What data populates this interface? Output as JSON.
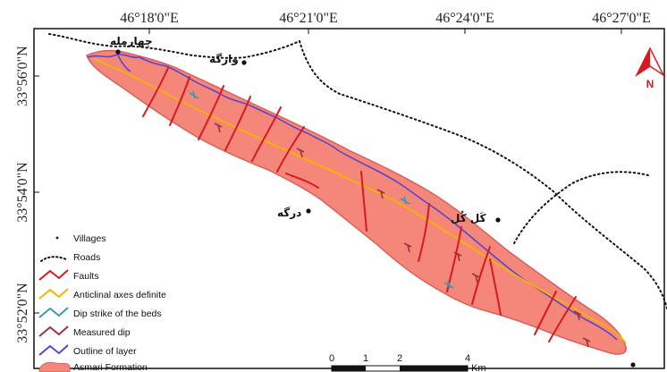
{
  "colors": {
    "formation_fill": "#f4877a",
    "formation_stroke": "#d9605a",
    "fault": "#d71920",
    "anticline": "#f4b400",
    "dip_strike": "#3a9bb0",
    "measured_dip": "#a0303a",
    "layer_outline": "#5a45c8",
    "north_arrow": "#d71920"
  },
  "top_coordinates": [
    "46°18'0\"E",
    "46°21'0\"E",
    "46°24'0\"E",
    "46°27'0\"E"
  ],
  "left_coordinates": [
    "33°56'0\"N",
    "33°54'0\"N",
    "33°52'0\"N"
  ],
  "villages": [
    {
      "name": "چهارمله"
    },
    {
      "name": "وارگه"
    },
    {
      "name": "درگه"
    },
    {
      "name": "کَل کُل"
    },
    {
      "name": ""
    }
  ],
  "legend": {
    "items": [
      {
        "label": "Villages",
        "icon": "village-dot-icon"
      },
      {
        "label": "Roads",
        "icon": "road-dotted-icon"
      },
      {
        "label": "Faults",
        "icon": "fault-line-icon"
      },
      {
        "label": "Anticlinal axes definite",
        "icon": "anticline-line-icon"
      },
      {
        "label": "Dip strike of the beds",
        "icon": "dip-strike-icon"
      },
      {
        "label": "Measured dip",
        "icon": "measured-dip-icon"
      },
      {
        "label": "Outline of layer",
        "icon": "layer-outline-icon"
      },
      {
        "label": "Asmari Formation",
        "icon": "formation-swatch-icon"
      }
    ]
  },
  "scale_bar": {
    "ticks": [
      "0",
      "1",
      "2",
      "4"
    ],
    "unit": "Km"
  },
  "north_arrow": {
    "label": "N",
    "icon": "north-arrow-icon"
  }
}
